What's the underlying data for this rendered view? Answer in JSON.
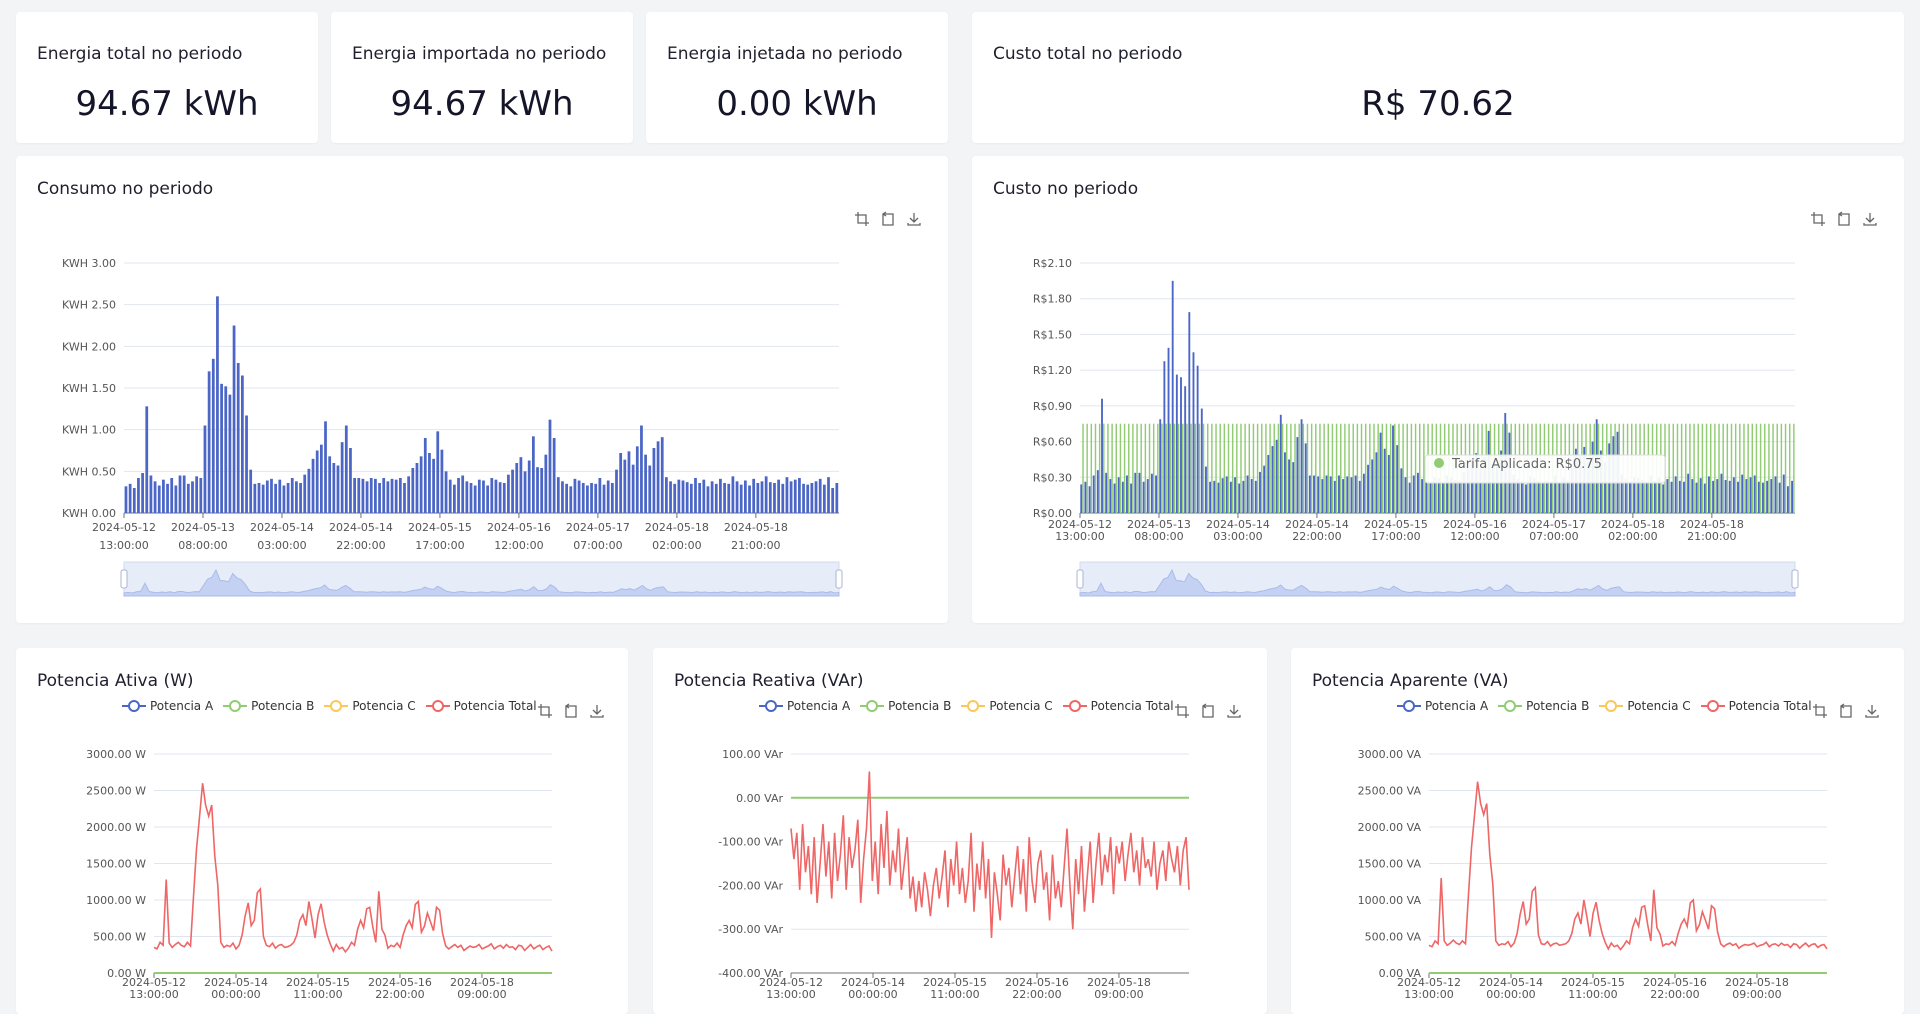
{
  "colors": {
    "blue": "#4b66c6",
    "green": "#91cc75",
    "yellow": "#fac858",
    "red": "#ee6666",
    "text": "#1f1f2e"
  },
  "kpis": [
    {
      "title": "Energia total no periodo",
      "value": "94.67 kWh"
    },
    {
      "title": "Energia importada no periodo",
      "value": "94.67 kWh"
    },
    {
      "title": "Energia injetada no periodo",
      "value": "0.00 kWh"
    },
    {
      "title": "Custo total no periodo",
      "value": "R$ 70.62"
    }
  ],
  "consumo": {
    "title": "Consumo no periodo",
    "tooltip": null
  },
  "custo": {
    "title": "Custo no periodo",
    "tooltip_text": "Tarifa Aplicada: R$0.75"
  },
  "potencia": {
    "ativa_title": "Potencia Ativa (W)",
    "reativa_title": "Potencia Reativa (VAr)",
    "aparente_title": "Potencia Aparente (VA)",
    "legend": [
      "Potencia A",
      "Potencia B",
      "Potencia C",
      "Potencia Total"
    ]
  },
  "chart_data": [
    {
      "id": "consumo",
      "type": "bar",
      "title": "Consumo no periodo",
      "y_ticks": [
        "KWH 0.00",
        "KWH 0.50",
        "KWH 1.00",
        "KWH 1.50",
        "KWH 2.00",
        "KWH 2.50",
        "KWH 3.00"
      ],
      "ylim": [
        0,
        3
      ],
      "x_ticks": [
        [
          "2024-05-12",
          "13:00:00"
        ],
        [
          "2024-05-13",
          "08:00:00"
        ],
        [
          "2024-05-14",
          "03:00:00"
        ],
        [
          "2024-05-14",
          "22:00:00"
        ],
        [
          "2024-05-15",
          "17:00:00"
        ],
        [
          "2024-05-16",
          "12:00:00"
        ],
        [
          "2024-05-17",
          "07:00:00"
        ],
        [
          "2024-05-18",
          "02:00:00"
        ],
        [
          "2024-05-18",
          "21:00:00"
        ]
      ],
      "series": [
        {
          "values": [
            0.32,
            0.35,
            0.3,
            0.42,
            0.48,
            1.28,
            0.45,
            0.38,
            0.33,
            0.4,
            0.35,
            0.42,
            0.33,
            0.45,
            0.45,
            0.35,
            0.38,
            0.44,
            0.42,
            1.05,
            1.7,
            1.85,
            2.6,
            1.55,
            1.52,
            1.42,
            2.25,
            1.8,
            1.65,
            1.17,
            0.52,
            0.35,
            0.36,
            0.34,
            0.39,
            0.41,
            0.35,
            0.4,
            0.33,
            0.36,
            0.42,
            0.38,
            0.36,
            0.46,
            0.53,
            0.65,
            0.75,
            0.82,
            1.1,
            0.68,
            0.6,
            0.57,
            0.85,
            1.05,
            0.78,
            0.42,
            0.42,
            0.41,
            0.38,
            0.42,
            0.41,
            0.36,
            0.42,
            0.38,
            0.41,
            0.4,
            0.42,
            0.36,
            0.44,
            0.54,
            0.6,
            0.68,
            0.9,
            0.72,
            0.65,
            0.98,
            0.76,
            0.5,
            0.4,
            0.34,
            0.42,
            0.45,
            0.38,
            0.36,
            0.33,
            0.4,
            0.39,
            0.33,
            0.42,
            0.4,
            0.37,
            0.36,
            0.46,
            0.52,
            0.6,
            0.67,
            0.5,
            0.63,
            0.92,
            0.55,
            0.54,
            0.7,
            1.12,
            0.9,
            0.43,
            0.38,
            0.35,
            0.32,
            0.41,
            0.39,
            0.36,
            0.33,
            0.36,
            0.35,
            0.42,
            0.34,
            0.39,
            0.36,
            0.52,
            0.72,
            0.64,
            0.74,
            0.58,
            0.8,
            1.05,
            0.7,
            0.57,
            0.78,
            0.86,
            0.91,
            0.43,
            0.38,
            0.35,
            0.4,
            0.39,
            0.37,
            0.35,
            0.42,
            0.36,
            0.4,
            0.32,
            0.38,
            0.35,
            0.41,
            0.36,
            0.35,
            0.44,
            0.38,
            0.34,
            0.39,
            0.33,
            0.41,
            0.36,
            0.38,
            0.44,
            0.37,
            0.36,
            0.4,
            0.35,
            0.43,
            0.38,
            0.4,
            0.42,
            0.35,
            0.34,
            0.36,
            0.38,
            0.41,
            0.34,
            0.43,
            0.3,
            0.36
          ]
        }
      ]
    },
    {
      "id": "custo",
      "type": "bar",
      "title": "Custo no periodo",
      "y_ticks": [
        "R$0.00",
        "R$0.30",
        "R$0.60",
        "R$0.90",
        "R$1.20",
        "R$1.50",
        "R$1.80",
        "R$2.10"
      ],
      "ylim": [
        0,
        2.1
      ],
      "x_ticks": [
        [
          "2024-05-12",
          "13:00:00"
        ],
        [
          "2024-05-13",
          "08:00:00"
        ],
        [
          "2024-05-14",
          "03:00:00"
        ],
        [
          "2024-05-14",
          "22:00:00"
        ],
        [
          "2024-05-15",
          "17:00:00"
        ],
        [
          "2024-05-16",
          "12:00:00"
        ],
        [
          "2024-05-17",
          "07:00:00"
        ],
        [
          "2024-05-18",
          "02:00:00"
        ],
        [
          "2024-05-18",
          "21:00:00"
        ]
      ],
      "tariff": 0.75,
      "series": [
        {
          "name": "Tarifa Aplicada"
        }
      ]
    },
    {
      "id": "ativa",
      "type": "line",
      "title": "Potencia Ativa (W)",
      "y_ticks": [
        "0.00 W",
        "500.00 W",
        "1000.00 W",
        "1500.00 W",
        "2000.00 W",
        "2500.00 W",
        "3000.00 W"
      ],
      "ylim": [
        0,
        3000
      ],
      "x_ticks": [
        [
          "2024-05-12",
          "13:00:00"
        ],
        [
          "2024-05-14",
          "00:00:00"
        ],
        [
          "2024-05-15",
          "11:00:00"
        ],
        [
          "2024-05-16",
          "22:00:00"
        ],
        [
          "2024-05-18",
          "09:00:00"
        ]
      ],
      "series": [
        {
          "name": "Potencia A",
          "values": [
            0
          ]
        },
        {
          "name": "Potencia B",
          "values": [
            0
          ]
        },
        {
          "name": "Potencia C",
          "values": [
            0
          ]
        },
        {
          "name": "Potencia Total",
          "values": [
            350,
            330,
            420,
            380,
            1280,
            410,
            350,
            390,
            420,
            380,
            360,
            420,
            370,
            1050,
            1700,
            2150,
            2600,
            2300,
            2150,
            2300,
            1600,
            1200,
            420,
            350,
            380,
            360,
            410,
            330,
            380,
            520,
            780,
            960,
            650,
            720,
            1100,
            1150,
            500,
            380,
            360,
            410,
            340,
            380,
            390,
            350,
            360,
            380,
            420,
            520,
            720,
            800,
            650,
            980,
            740,
            480,
            800,
            950,
            700,
            520,
            400,
            300,
            390,
            330,
            350,
            290,
            340,
            420,
            380,
            600,
            720,
            620,
            880,
            900,
            640,
            420,
            1120,
            600,
            520,
            340,
            380,
            360,
            410,
            350,
            520,
            650,
            720,
            620,
            940,
            980,
            560,
            640,
            820,
            700,
            580,
            900,
            860,
            540,
            370,
            330,
            360,
            390,
            350,
            380,
            310,
            340,
            370,
            350,
            360,
            390,
            330,
            350,
            370,
            400,
            330,
            360,
            380,
            340,
            390,
            350,
            360,
            320,
            380,
            370,
            310,
            350,
            390,
            330,
            360,
            380,
            320,
            350,
            370,
            300
          ]
        }
      ]
    },
    {
      "id": "reativa",
      "type": "line",
      "title": "Potencia Reativa (VAr)",
      "y_ticks": [
        "-400.00 VAr",
        "-300.00 VAr",
        "-200.00 VAr",
        "-100.00 VAr",
        "0.00 VAr",
        "100.00 VAr"
      ],
      "ylim": [
        -400,
        100
      ],
      "x_ticks": [
        [
          "2024-05-12",
          "13:00:00"
        ],
        [
          "2024-05-14",
          "00:00:00"
        ],
        [
          "2024-05-15",
          "11:00:00"
        ],
        [
          "2024-05-16",
          "22:00:00"
        ],
        [
          "2024-05-18",
          "09:00:00"
        ]
      ],
      "series": [
        {
          "name": "Potencia A",
          "values": [
            0
          ]
        },
        {
          "name": "Potencia B",
          "values": [
            0
          ]
        },
        {
          "name": "Potencia C",
          "values": [
            0
          ]
        },
        {
          "name": "Potencia Total",
          "values": [
            -70,
            -140,
            -80,
            -210,
            -60,
            -170,
            -110,
            -220,
            -90,
            -240,
            -150,
            -60,
            -180,
            -100,
            -230,
            -80,
            -190,
            -130,
            -40,
            -210,
            -90,
            -160,
            -120,
            -50,
            -240,
            -140,
            -70,
            60,
            -190,
            -100,
            -220,
            -60,
            -160,
            -30,
            -200,
            -120,
            -170,
            -70,
            -210,
            -150,
            -90,
            -230,
            -180,
            -260,
            -190,
            -250,
            -170,
            -210,
            -270,
            -200,
            -160,
            -230,
            -180,
            -120,
            -250,
            -140,
            -200,
            -100,
            -220,
            -160,
            -240,
            -190,
            -80,
            -260,
            -150,
            -210,
            -100,
            -230,
            -140,
            -320,
            -170,
            -220,
            -280,
            -130,
            -200,
            -160,
            -250,
            -180,
            -110,
            -220,
            -140,
            -260,
            -90,
            -190,
            -240,
            -150,
            -120,
            -210,
            -170,
            -280,
            -130,
            -230,
            -190,
            -250,
            -160,
            -70,
            -200,
            -300,
            -140,
            -220,
            -110,
            -260,
            -180,
            -100,
            -240,
            -150,
            -80,
            -200,
            -130,
            -170,
            -90,
            -220,
            -110,
            -150,
            -100,
            -190,
            -130,
            -80,
            -170,
            -120,
            -200,
            -90,
            -160,
            -140,
            -180,
            -100,
            -210,
            -150,
            -120,
            -190,
            -100,
            -140,
            -170,
            -110,
            -200,
            -120,
            -90,
            -210
          ]
        }
      ]
    },
    {
      "id": "aparente",
      "type": "line",
      "title": "Potencia Aparente (VA)",
      "y_ticks": [
        "0.00 VA",
        "500.00 VA",
        "1000.00 VA",
        "1500.00 VA",
        "2000.00 VA",
        "2500.00 VA",
        "3000.00 VA"
      ],
      "ylim": [
        0,
        3000
      ],
      "x_ticks": [
        [
          "2024-05-12",
          "13:00:00"
        ],
        [
          "2024-05-14",
          "00:00:00"
        ],
        [
          "2024-05-15",
          "11:00:00"
        ],
        [
          "2024-05-16",
          "22:00:00"
        ],
        [
          "2024-05-18",
          "09:00:00"
        ]
      ],
      "series": [
        {
          "name": "Potencia A",
          "values": [
            0
          ]
        },
        {
          "name": "Potencia B",
          "values": [
            0
          ]
        },
        {
          "name": "Potencia C",
          "values": [
            0
          ]
        },
        {
          "name": "Potencia Total",
          "values": [
            380,
            360,
            440,
            400,
            1300,
            440,
            380,
            410,
            450,
            410,
            390,
            440,
            400,
            1080,
            1720,
            2170,
            2620,
            2320,
            2170,
            2320,
            1620,
            1220,
            440,
            380,
            400,
            390,
            430,
            360,
            410,
            540,
            800,
            980,
            670,
            740,
            1120,
            1170,
            520,
            400,
            390,
            430,
            370,
            400,
            410,
            380,
            390,
            400,
            440,
            540,
            740,
            820,
            670,
            1000,
            760,
            500,
            820,
            970,
            720,
            540,
            420,
            330,
            410,
            360,
            380,
            320,
            370,
            440,
            400,
            620,
            740,
            640,
            900,
            920,
            660,
            440,
            1140,
            620,
            540,
            370,
            400,
            390,
            430,
            380,
            540,
            670,
            740,
            640,
            960,
            1000,
            580,
            660,
            840,
            720,
            600,
            920,
            880,
            560,
            400,
            360,
            390,
            410,
            380,
            400,
            340,
            370,
            390,
            380,
            390,
            410,
            360,
            380,
            390,
            420,
            360,
            390,
            400,
            370,
            410,
            380,
            390,
            350,
            400,
            390,
            340,
            380,
            410,
            360,
            390,
            400,
            350,
            380,
            390,
            330
          ]
        }
      ]
    }
  ]
}
